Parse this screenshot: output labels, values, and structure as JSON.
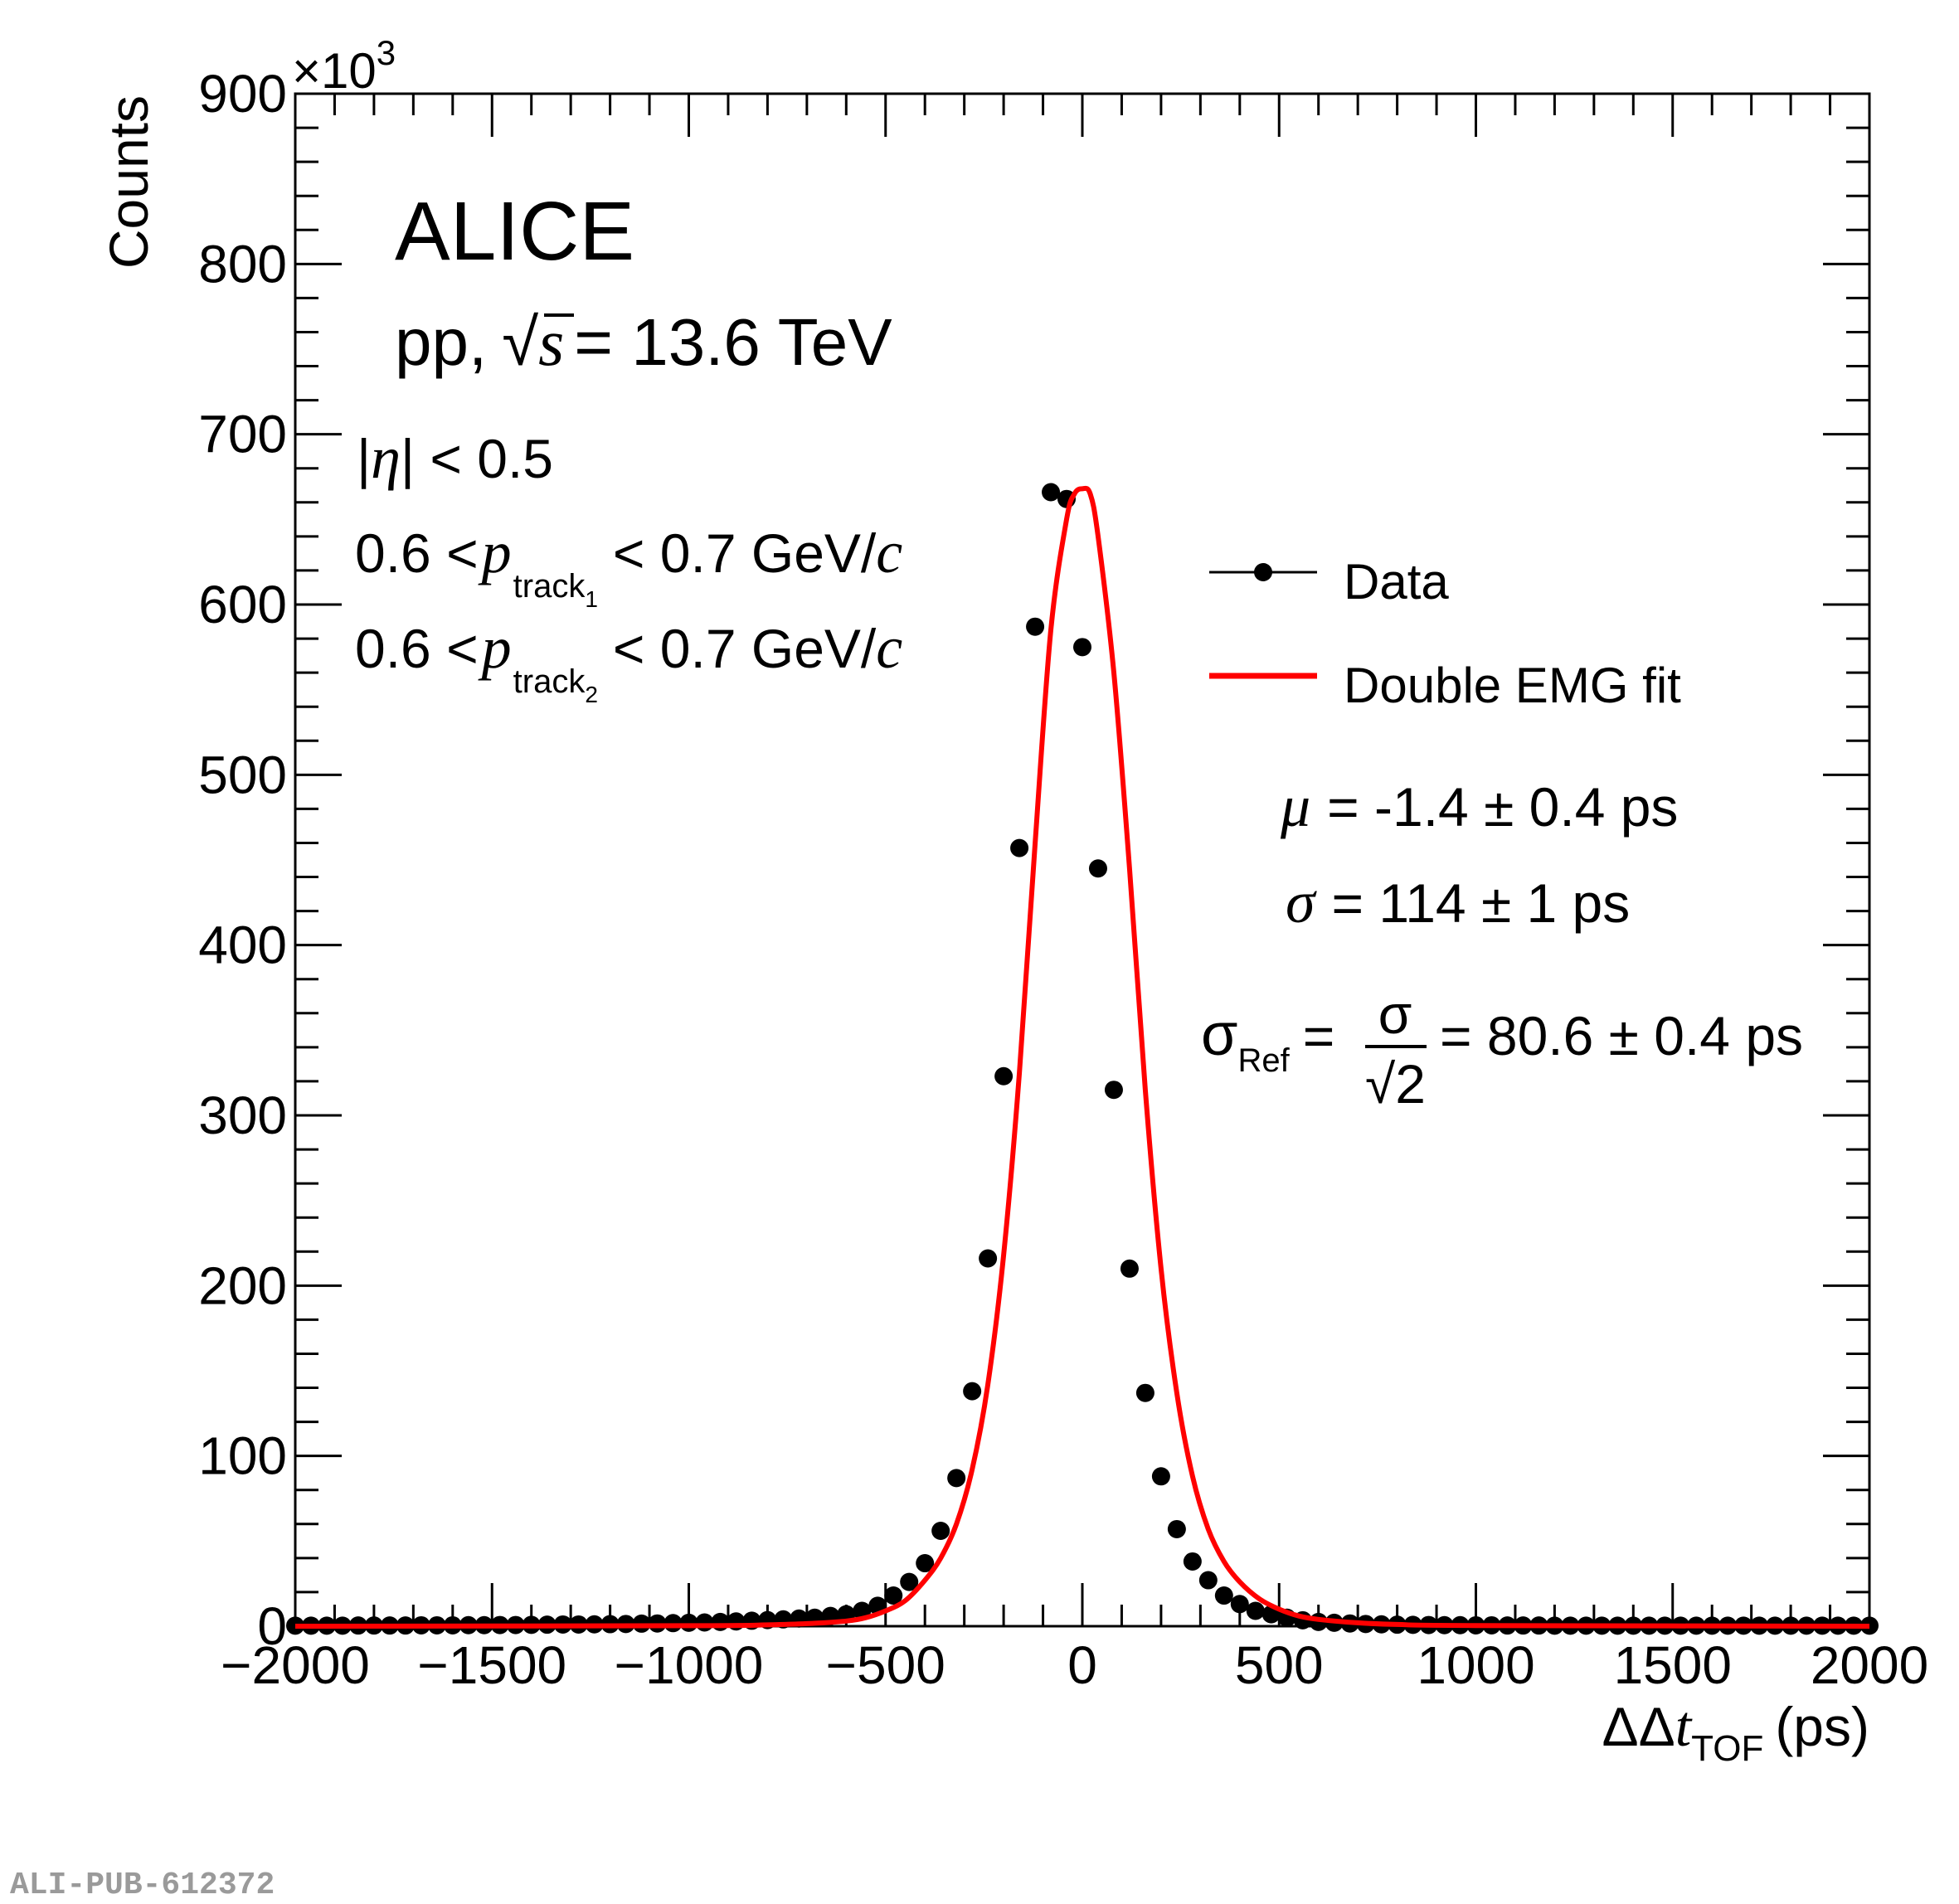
{
  "chart_data": {
    "type": "scatter",
    "experiment": "ALICE",
    "system": "pp,",
    "energy_sqrt_s": "s",
    "energy_value": "= 13.6 TeV",
    "cuts": {
      "eta": "| < 0.5",
      "eta_symbol": "η",
      "p_lo": "0.6 <",
      "p_sym": "p",
      "p_sub": "track",
      "p_sub1": "1",
      "p_sub2": "2",
      "p_hi": "< 0.7 GeV/",
      "p_c": "c"
    },
    "xlabel": "ΔΔ",
    "xlabel_t": "t",
    "xlabel_sub": "TOF",
    "xlabel_unit": "(ps)",
    "ylabel": "Counts",
    "y_multiplier": "×10",
    "y_multiplier_exp": "3",
    "xlim": [
      -2000,
      2000
    ],
    "ylim": [
      0,
      900
    ],
    "x_ticks": [
      -2000,
      -1500,
      -1000,
      -500,
      0,
      500,
      1000,
      1500,
      2000
    ],
    "x_tick_labels": [
      "−2000",
      "−1500",
      "−1000",
      "−500",
      "0",
      "500",
      "1000",
      "1500",
      "2000"
    ],
    "y_ticks": [
      0,
      100,
      200,
      300,
      400,
      500,
      600,
      700,
      800,
      900
    ],
    "y_tick_labels": [
      "0",
      "100",
      "200",
      "300",
      "400",
      "500",
      "600",
      "700",
      "800",
      "900"
    ],
    "legend": {
      "position": "right",
      "entries": [
        {
          "label": "Data",
          "style": "marker-line",
          "color": "#000000"
        },
        {
          "label": "Double EMG fit",
          "style": "line",
          "color": "#ff0000"
        }
      ]
    },
    "fit_results": {
      "mu_symbol": "μ",
      "mu_text": "= -1.4 ± 0.4 ps",
      "sigma_symbol": "σ",
      "sigma_text": "= 114 ± 1 ps",
      "sigma_ref_symbol": "σ",
      "sigma_ref_sub": "Ref",
      "sigma_ref_eq": "=",
      "frac_num": "σ",
      "frac_den": "2",
      "sigma_ref_value": "= 80.6 ± 0.4 ps"
    },
    "fit_params": {
      "mu": -1.4,
      "sigma": 114
    },
    "series": [
      {
        "name": "Data",
        "color": "#000000",
        "x": [
          -2000,
          -1960,
          -1920,
          -1880,
          -1840,
          -1800,
          -1760,
          -1720,
          -1680,
          -1640,
          -1600,
          -1560,
          -1520,
          -1480,
          -1440,
          -1400,
          -1360,
          -1320,
          -1280,
          -1240,
          -1200,
          -1160,
          -1120,
          -1080,
          -1040,
          -1000,
          -960,
          -920,
          -880,
          -840,
          -800,
          -760,
          -720,
          -680,
          -640,
          -600,
          -560,
          -520,
          -480,
          -440,
          -400,
          -360,
          -320,
          -280,
          -240,
          -200,
          -160,
          -120,
          -80,
          -40,
          0,
          40,
          80,
          120,
          160,
          200,
          240,
          280,
          320,
          360,
          400,
          440,
          480,
          520,
          560,
          600,
          640,
          680,
          720,
          760,
          800,
          840,
          880,
          920,
          960,
          1000,
          1040,
          1080,
          1120,
          1160,
          1200,
          1240,
          1280,
          1320,
          1360,
          1400,
          1440,
          1480,
          1520,
          1560,
          1600,
          1640,
          1680,
          1720,
          1760,
          1800,
          1840,
          1880,
          1920,
          1960,
          2000
        ],
        "y": [
          0.3,
          0.3,
          0.3,
          0.3,
          0.4,
          0.4,
          0.4,
          0.4,
          0.5,
          0.5,
          0.5,
          0.6,
          0.6,
          0.7,
          0.7,
          0.8,
          0.9,
          1.0,
          1.0,
          1.1,
          1.2,
          1.3,
          1.5,
          1.6,
          1.8,
          2.0,
          2.2,
          2.5,
          2.8,
          3.2,
          3.6,
          4.0,
          4.5,
          5.0,
          6.0,
          7.0,
          9.0,
          12,
          18,
          26,
          37,
          56,
          87,
          138,
          216,
          323,
          457,
          587,
          666,
          662,
          575,
          445,
          315,
          210,
          137,
          88,
          57,
          38,
          27,
          18,
          13,
          9,
          7,
          5,
          3.5,
          2.5,
          2.0,
          1.6,
          1.3,
          1.1,
          0.9,
          0.8,
          0.7,
          0.6,
          0.6,
          0.5,
          0.5,
          0.4,
          0.4,
          0.4,
          0.3,
          0.3,
          0.3,
          0.3,
          0.3,
          0.3,
          0.3,
          0.3,
          0.3,
          0.3,
          0.3,
          0.3,
          0.3,
          0.3,
          0.3,
          0.3,
          0.3,
          0.3,
          0.3,
          0.3,
          0.3
        ]
      },
      {
        "name": "Double EMG fit",
        "color": "#ff0000",
        "x": [
          -2000,
          -1000,
          -800,
          -700,
          -600,
          -550,
          -500,
          -450,
          -400,
          -360,
          -320,
          -280,
          -240,
          -200,
          -160,
          -120,
          -80,
          -40,
          -20,
          0,
          20,
          40,
          80,
          120,
          160,
          200,
          240,
          280,
          320,
          360,
          400,
          450,
          500,
          550,
          600,
          700,
          800,
          1000,
          2000
        ],
        "y": [
          0,
          0.3,
          0.8,
          1.5,
          3,
          5,
          9,
          15,
          27,
          40,
          60,
          92,
          142,
          218,
          325,
          460,
          585,
          650,
          665,
          668,
          665,
          640,
          560,
          445,
          315,
          210,
          137,
          88,
          57,
          38,
          26,
          16,
          10,
          6,
          4,
          2,
          1,
          0.4,
          0
        ]
      }
    ]
  },
  "watermark": "ALI-PUB-612372"
}
